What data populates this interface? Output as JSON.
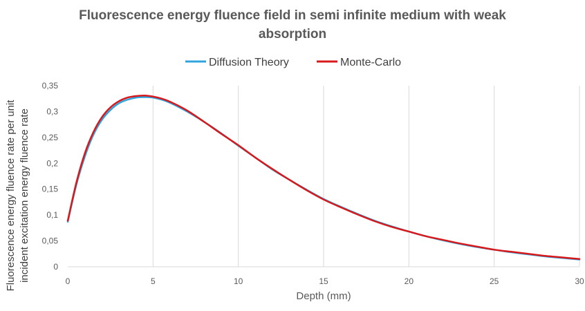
{
  "chart_data": {
    "type": "line",
    "title_line1": "Fluorescence energy fluence field in semi infinite medium with weak",
    "title_line2": "absorption",
    "xlabel": "Depth (mm)",
    "ylabel_line1": "Fluorescence energy fluence rate per unit",
    "ylabel_line2": "incident excitation energy fluence rate",
    "xlim": [
      0,
      30
    ],
    "ylim": [
      0,
      0.35
    ],
    "x_ticks": [
      "0",
      "5",
      "10",
      "15",
      "20",
      "25",
      "30"
    ],
    "y_ticks": [
      "0",
      "0,05",
      "0,1",
      "0,15",
      "0,2",
      "0,25",
      "0,3",
      "0,35"
    ],
    "grid": "vertical",
    "legend_position": "top",
    "x": [
      0,
      0.5,
      1,
      1.5,
      2,
      2.5,
      3,
      3.5,
      4,
      4.5,
      5,
      5.5,
      6,
      7,
      8,
      9,
      10,
      11,
      12,
      13,
      14,
      15,
      16,
      17,
      18,
      19,
      20,
      21,
      22,
      23,
      24,
      25,
      26,
      27,
      28,
      29,
      30
    ],
    "series": [
      {
        "name": "Diffusion Theory",
        "color": "#2fa3dc",
        "values": [
          0.087,
          0.158,
          0.213,
          0.255,
          0.284,
          0.303,
          0.316,
          0.323,
          0.327,
          0.328,
          0.327,
          0.323,
          0.317,
          0.3,
          0.28,
          0.258,
          0.234,
          0.211,
          0.188,
          0.168,
          0.149,
          0.131,
          0.116,
          0.102,
          0.089,
          0.078,
          0.068,
          0.059,
          0.051,
          0.044,
          0.038,
          0.033,
          0.028,
          0.024,
          0.02,
          0.017,
          0.014
        ]
      },
      {
        "name": "Monte-Carlo",
        "color": "#d7191c",
        "values": [
          0.089,
          0.162,
          0.219,
          0.26,
          0.289,
          0.308,
          0.32,
          0.327,
          0.33,
          0.331,
          0.329,
          0.325,
          0.319,
          0.302,
          0.28,
          0.257,
          0.235,
          0.211,
          0.189,
          0.168,
          0.148,
          0.13,
          0.115,
          0.101,
          0.088,
          0.077,
          0.068,
          0.059,
          0.052,
          0.045,
          0.039,
          0.033,
          0.029,
          0.025,
          0.021,
          0.018,
          0.015
        ]
      }
    ]
  }
}
